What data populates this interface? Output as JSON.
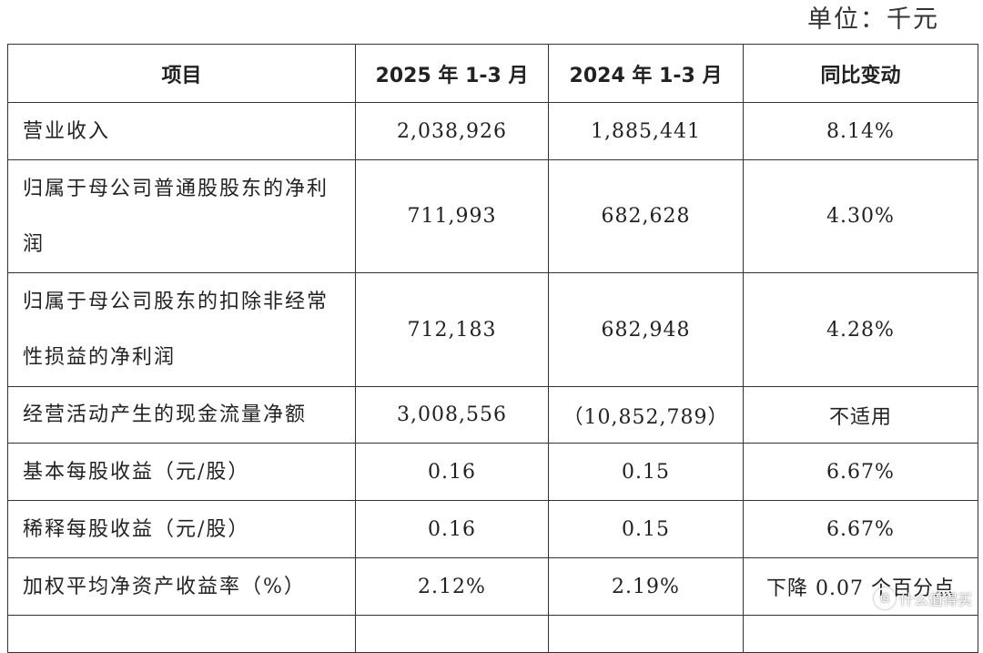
{
  "unit_text": "单位：千元",
  "table": {
    "headers": [
      "项目",
      "2025 年 1-3 月",
      "2024 年 1-3 月",
      "同比变动"
    ],
    "rows": [
      {
        "label": "营业收入",
        "y2025": "2,038,926",
        "y2024": "1,885,441",
        "change": "8.14%"
      },
      {
        "label": "归属于母公司普通股股东的净利润",
        "y2025": "711,993",
        "y2024": "682,628",
        "change": "4.30%"
      },
      {
        "label": "归属于母公司股东的扣除非经常性损益的净利润",
        "y2025": "712,183",
        "y2024": "682,948",
        "change": "4.28%"
      },
      {
        "label": "经营活动产生的现金流量净额",
        "y2025": "3,008,556",
        "y2024": "（10,852,789）",
        "change": "不适用"
      },
      {
        "label": "基本每股收益（元/股）",
        "y2025": "0.16",
        "y2024": "0.15",
        "change": "6.67%"
      },
      {
        "label": "稀释每股收益（元/股）",
        "y2025": "0.16",
        "y2024": "0.15",
        "change": "6.67%"
      },
      {
        "label": "加权平均净资产收益率（%）",
        "y2025": "2.12%",
        "y2024": "2.19%",
        "change": "下降 0.07 个百分点"
      },
      {
        "label": "",
        "y2025": "",
        "y2024": "",
        "change": ""
      }
    ]
  },
  "watermark": {
    "badge": "值",
    "text": "什么值得买"
  }
}
